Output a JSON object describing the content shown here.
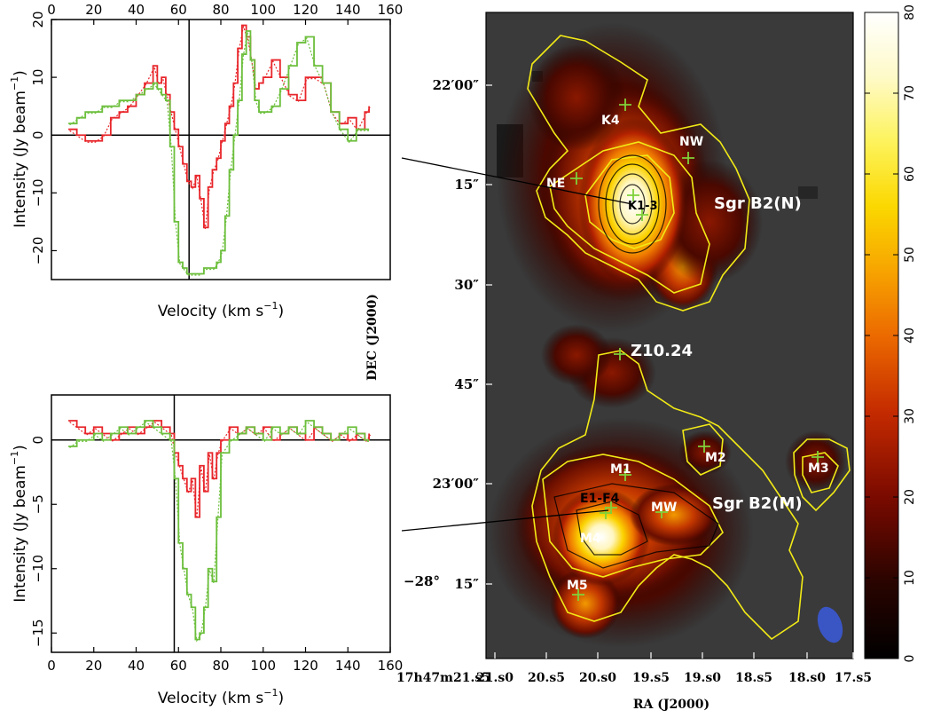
{
  "colors": {
    "red": "#e8262b",
    "green": "#6cbf3c",
    "contour": "#f2ea16",
    "marker": "#7fd13a",
    "beam": "#3a55c4"
  },
  "chart_data": [
    {
      "type": "line",
      "name": "upper-spectrum",
      "xlabel": "Velocity (km s",
      "xlabel_sup": "−1",
      "xlabel_close": ")",
      "ylabel": "Intensity (Jy beam",
      "ylabel_sup": "−1",
      "ylabel_close": ")",
      "xlim": [
        0,
        160
      ],
      "ylim": [
        -25,
        20
      ],
      "xticks": [
        "0",
        "20",
        "40",
        "60",
        "80",
        "100",
        "120",
        "140",
        "160"
      ],
      "yticks": [
        "20",
        "10",
        "0",
        "−10",
        "−20"
      ],
      "ytick_values": [
        20,
        10,
        0,
        -10,
        -20
      ],
      "vline": 65,
      "hline": 0,
      "x": [
        8,
        12,
        16,
        20,
        24,
        28,
        32,
        36,
        40,
        44,
        48,
        50,
        52,
        54,
        56,
        58,
        60,
        62,
        64,
        66,
        68,
        70,
        72,
        74,
        76,
        78,
        80,
        82,
        84,
        86,
        88,
        90,
        92,
        94,
        96,
        98,
        100,
        104,
        108,
        112,
        116,
        120,
        124,
        128,
        132,
        136,
        140,
        144,
        148,
        150
      ],
      "series": [
        {
          "values": [
            1,
            0,
            -1,
            -1,
            0,
            3,
            4,
            5,
            7,
            9,
            12,
            9,
            10,
            7,
            4,
            1,
            -2,
            -5,
            -8,
            -9,
            -7,
            -11,
            -16,
            -9,
            -6,
            -4,
            -1,
            2,
            5,
            9,
            15,
            19,
            17,
            13,
            8,
            9,
            10,
            13,
            10,
            7,
            6,
            10,
            10,
            9,
            4,
            2,
            3,
            1,
            4,
            5
          ]
        },
        {
          "values": [
            2,
            3,
            4,
            4,
            5,
            5,
            6,
            6,
            7,
            8,
            9,
            8,
            7,
            6,
            -2,
            -15,
            -22,
            -23,
            -24,
            -24,
            -24,
            -24,
            -23,
            -23,
            -23,
            -22,
            -20,
            -14,
            -6,
            0,
            6,
            14,
            18,
            13,
            6,
            4,
            4,
            5,
            8,
            12,
            16,
            17,
            12,
            9,
            4,
            1,
            -1,
            1,
            1,
            1
          ]
        }
      ]
    },
    {
      "type": "line",
      "name": "lower-spectrum",
      "xlabel": "Velocity (km s",
      "xlabel_sup": "−1",
      "xlabel_close": ")",
      "ylabel": "Intensity (Jy beam",
      "ylabel_sup": "−1",
      "ylabel_close": ")",
      "xlim": [
        0,
        160
      ],
      "ylim": [
        -16.5,
        3.5
      ],
      "xticks": [
        "0",
        "20",
        "40",
        "60",
        "80",
        "100",
        "120",
        "140",
        "160"
      ],
      "yticks": [
        "0",
        "−5",
        "−10",
        "−15"
      ],
      "ytick_values": [
        0,
        -5,
        -10,
        -15
      ],
      "vline": 58,
      "hline": 0,
      "x": [
        8,
        12,
        16,
        20,
        24,
        28,
        32,
        36,
        40,
        44,
        48,
        52,
        56,
        58,
        60,
        62,
        64,
        66,
        68,
        70,
        72,
        74,
        76,
        78,
        80,
        84,
        88,
        92,
        96,
        100,
        104,
        108,
        112,
        116,
        120,
        124,
        128,
        132,
        136,
        140,
        144,
        148,
        150
      ],
      "series": [
        {
          "values": [
            1.5,
            1,
            0.5,
            1,
            0.5,
            0,
            0.5,
            1,
            0.5,
            1,
            1.5,
            1,
            0.5,
            -1,
            -2,
            -3,
            -4,
            -3,
            -6,
            -2,
            -4,
            -1,
            -3,
            -1,
            0,
            1,
            0.5,
            1,
            0.5,
            1,
            0,
            0.5,
            1,
            0.5,
            0,
            1,
            0.5,
            0,
            0.5,
            0,
            0.5,
            0,
            0.5
          ]
        },
        {
          "values": [
            -0.5,
            0,
            0,
            0.5,
            0,
            0.5,
            1,
            0.5,
            1,
            1.5,
            1,
            0.5,
            0,
            -3,
            -8,
            -10,
            -12,
            -13,
            -15.5,
            -15,
            -13,
            -10,
            -11,
            -6,
            -1,
            0,
            0.5,
            1,
            0.5,
            0,
            1,
            0.5,
            1,
            0.5,
            1.5,
            1,
            0.5,
            0,
            0.5,
            1,
            0.5,
            0,
            0
          ]
        }
      ]
    },
    {
      "type": "heatmap",
      "name": "continuum-map",
      "xlabel": "RA (J2000)",
      "ylabel": "DEC (J2000)",
      "x_tick_labels": [
        "17h47m21.s5",
        "21.s0",
        "20.s5",
        "20.s0",
        "19.s5",
        "19.s0",
        "18.s5",
        "18.s0",
        "17.s5"
      ],
      "y_tick_labels": [
        "22′00″",
        "15″",
        "30″",
        "45″",
        "23′00″",
        "15″"
      ],
      "y_tick_prefix": "−28°",
      "colorbar": {
        "min": 0,
        "max": 80,
        "ticks": [
          "0",
          "10",
          "20",
          "30",
          "40",
          "50",
          "60",
          "70",
          "80"
        ],
        "tick_values": [
          0,
          10,
          20,
          30,
          40,
          50,
          60,
          70,
          80
        ]
      },
      "labels": {
        "sgrb2n": "Sgr B2(N)",
        "sgrb2m": "Sgr B2(M)",
        "z1024": "Z10.24",
        "k4": "K4",
        "nw": "NW",
        "ne": "NE",
        "k13": "K1-3",
        "m1": "M1",
        "e1f4": "E1-F4",
        "mw": "MW",
        "m4": "M4",
        "m5": "M5",
        "m2": "M2",
        "m3": "M3"
      }
    }
  ]
}
